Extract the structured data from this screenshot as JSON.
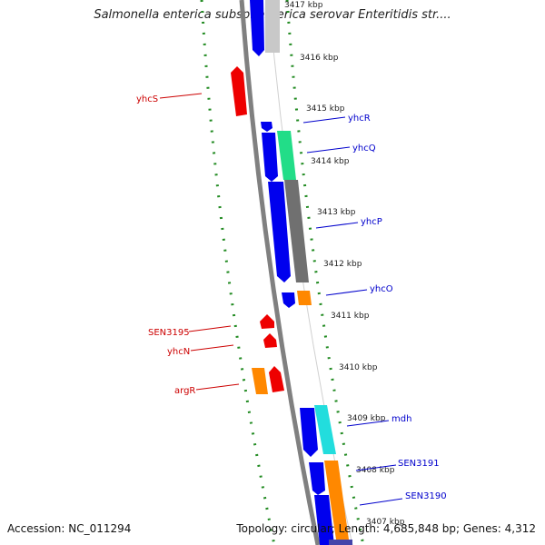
{
  "title": "Salmonella enterica subsp. enterica serovar Enteritidis str....",
  "footer": {
    "accession": "Accession: NC_011294",
    "topology": "Topology: circular; Length: 4,685,848 bp; Genes: 4,312"
  },
  "kbp_ticks": [
    {
      "label": "3417 kbp"
    },
    {
      "label": "3416 kbp"
    },
    {
      "label": "3415 kbp"
    },
    {
      "label": "3414 kbp"
    },
    {
      "label": "3413 kbp"
    },
    {
      "label": "3412 kbp"
    },
    {
      "label": "3411 kbp"
    },
    {
      "label": "3410 kbp"
    },
    {
      "label": "3409 kbp"
    },
    {
      "label": "3408 kbp"
    },
    {
      "label": "3407 kbp"
    }
  ],
  "genes_left": [
    {
      "label": "yhcS",
      "color": "#cc0000"
    },
    {
      "label": "SEN3195",
      "color": "#cc0000"
    },
    {
      "label": "yhcN",
      "color": "#cc0000"
    },
    {
      "label": "argR",
      "color": "#cc0000"
    }
  ],
  "genes_right": [
    {
      "label": "yhcR",
      "color": "#0000cc"
    },
    {
      "label": "yhcQ",
      "color": "#0000cc"
    },
    {
      "label": "yhcP",
      "color": "#0000cc"
    },
    {
      "label": "yhcO",
      "color": "#0000cc"
    },
    {
      "label": "mdh",
      "color": "#0000cc"
    },
    {
      "label": "SEN3191",
      "color": "#0000cc"
    },
    {
      "label": "SEN3190",
      "color": "#0000cc"
    }
  ],
  "colors": {
    "forward_strand": "#0000ee",
    "reverse_strand": "#ee0000",
    "backbone": "#808080",
    "gc_dots": "#228b22",
    "cog_green": "#22dd88",
    "cog_gray": "#707070",
    "cog_orange": "#ff8800",
    "cog_cyan": "#22dddd",
    "cog_lightgray": "#c8c8c8"
  }
}
